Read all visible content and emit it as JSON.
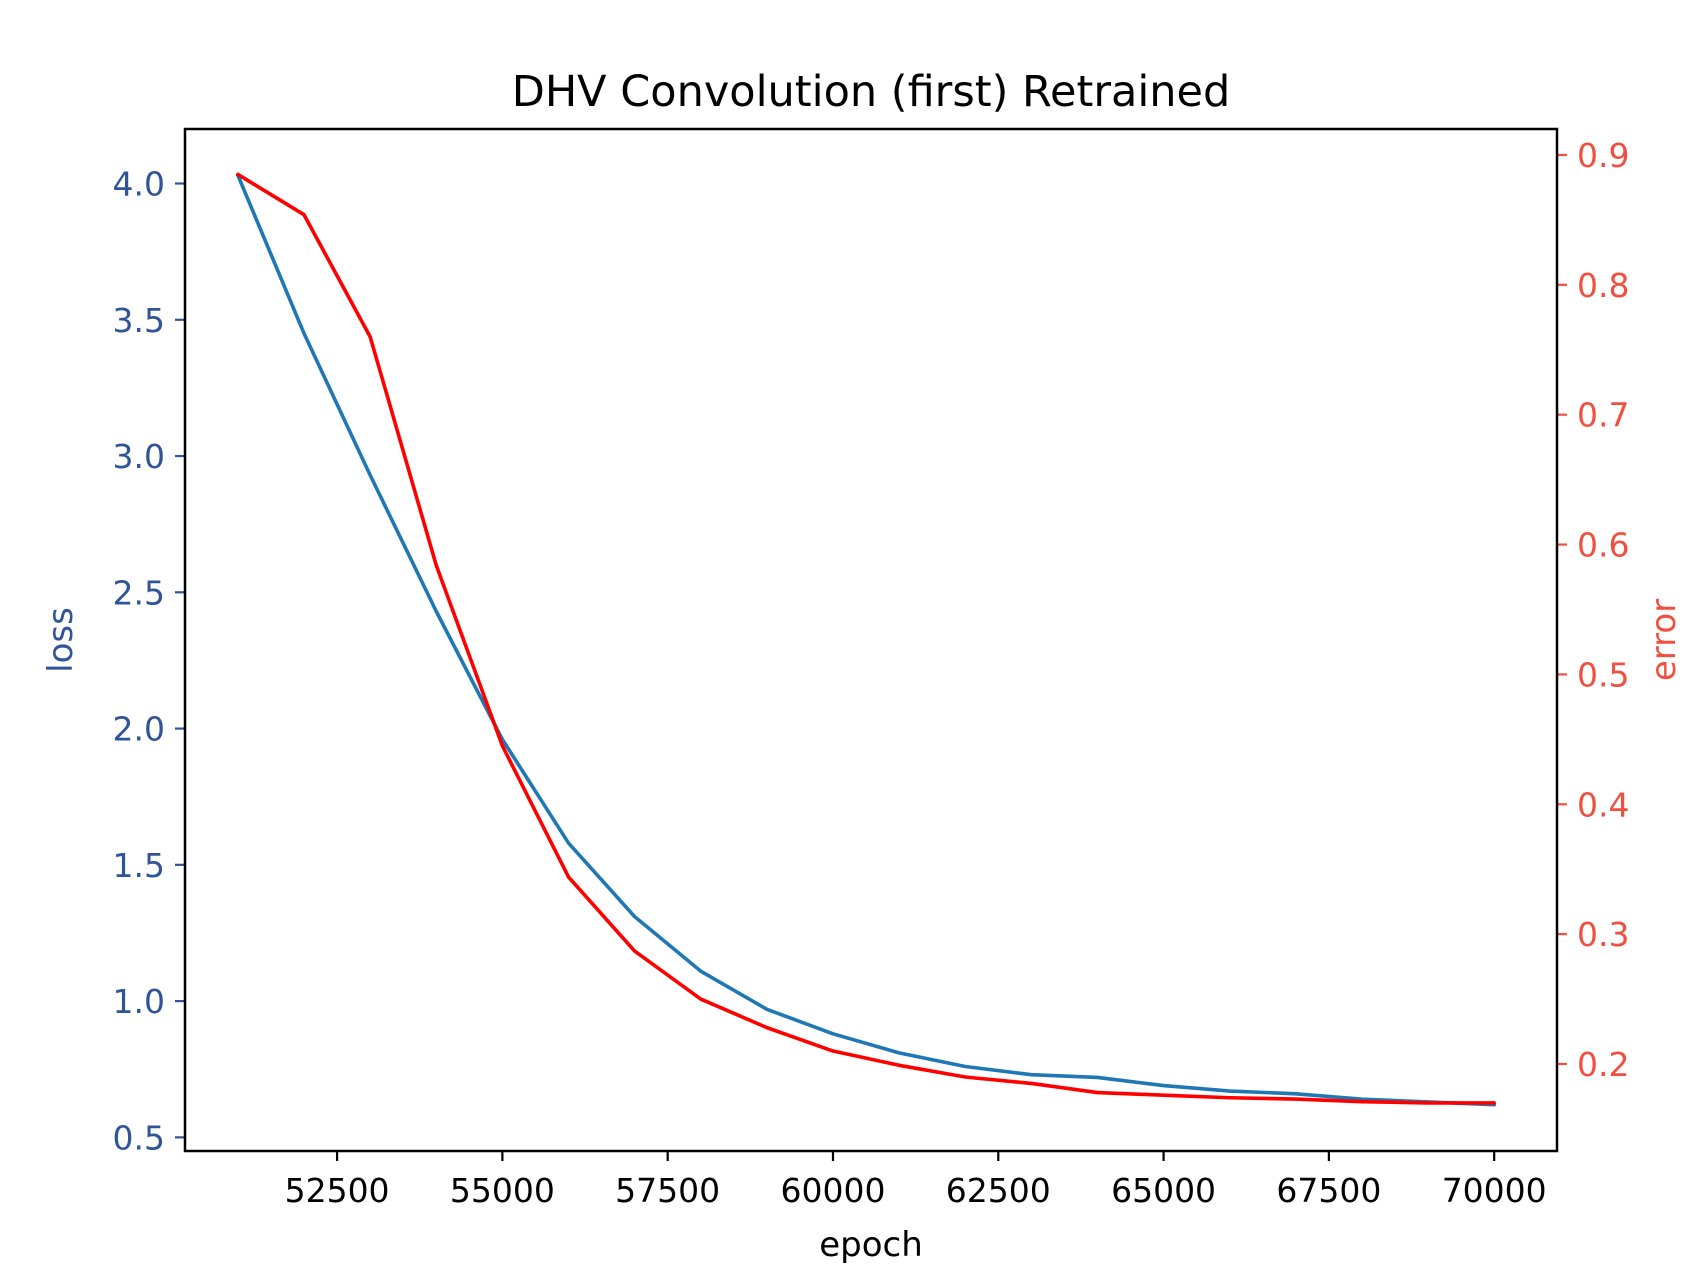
{
  "chart_data": {
    "type": "line",
    "title": "DHV Convolution (first) Retrained",
    "xlabel": "epoch",
    "ylabel_left": "loss",
    "ylabel_right": "error",
    "xlim": [
      50200,
      70950
    ],
    "ylim_left": [
      0.45,
      4.2
    ],
    "ylim_right": [
      0.133,
      0.92
    ],
    "x_ticks": [
      52500,
      55000,
      57500,
      60000,
      62500,
      65000,
      67500,
      70000
    ],
    "y_ticks_left": [
      0.5,
      1.0,
      1.5,
      2.0,
      2.5,
      3.0,
      3.5,
      4.0
    ],
    "y_ticks_right": [
      0.2,
      0.3,
      0.4,
      0.5,
      0.6,
      0.7,
      0.8,
      0.9
    ],
    "grid": false,
    "colors": {
      "loss": "#1f77b4",
      "error": "#ff0000",
      "left_axis_text": "#2f5597",
      "right_axis_text": "#f05040"
    },
    "x": [
      51000,
      52000,
      53000,
      54000,
      55000,
      56000,
      57000,
      58000,
      59000,
      60000,
      61000,
      62000,
      63000,
      64000,
      65000,
      66000,
      67000,
      68000,
      69000,
      70000
    ],
    "series": [
      {
        "axis": "left",
        "color": "#1f77b4",
        "values": [
          4.03,
          3.45,
          2.93,
          2.43,
          1.96,
          1.58,
          1.31,
          1.11,
          0.97,
          0.88,
          0.81,
          0.76,
          0.73,
          0.72,
          0.69,
          0.67,
          0.66,
          0.64,
          0.63,
          0.62
        ]
      },
      {
        "axis": "right",
        "color": "#ff0000",
        "values": [
          0.885,
          0.854,
          0.76,
          0.584,
          0.445,
          0.344,
          0.287,
          0.25,
          0.228,
          0.21,
          0.199,
          0.19,
          0.185,
          0.178,
          0.176,
          0.174,
          0.173,
          0.171,
          0.17,
          0.17
        ]
      }
    ]
  }
}
